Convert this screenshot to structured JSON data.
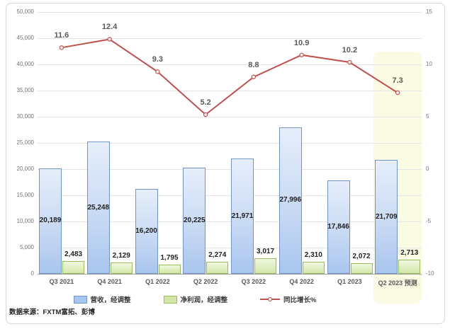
{
  "chart_data": {
    "type": "combo",
    "categories": [
      "Q3 2021",
      "Q4 2021",
      "Q1 2022",
      "Q2 2022",
      "Q3 2022",
      "Q4 2022",
      "Q1 2023",
      "Q2 2023 预测"
    ],
    "series": [
      {
        "name": "营收，经调整",
        "type": "bar",
        "axis": "left",
        "values": [
          20189,
          25248,
          16200,
          20225,
          21971,
          27996,
          17846,
          21709
        ]
      },
      {
        "name": "净利润，经调整",
        "type": "bar",
        "axis": "left",
        "values": [
          2483,
          2129,
          1795,
          2274,
          3017,
          2310,
          2072,
          2713
        ]
      },
      {
        "name": "同比增长%",
        "type": "line",
        "axis": "right",
        "values": [
          11.6,
          12.4,
          9.3,
          5.2,
          8.8,
          10.9,
          10.2,
          7.3
        ]
      }
    ],
    "left_axis": {
      "min": 0,
      "max": 50000,
      "step": 5000
    },
    "right_axis": {
      "min": -10,
      "max": 15,
      "step": 5
    },
    "grid": true,
    "legend_position": "bottom",
    "forecast_highlight_category": "Q2 2023 预测"
  },
  "colors": {
    "revenue_fill_top": "#e6eefb",
    "revenue_fill_mid": "#c9daf4",
    "revenue_fill_bottom": "#a9c6ee",
    "revenue_border": "#6e96cb",
    "profit_fill_top": "#f0f8e1",
    "profit_fill_bottom": "#d2e7a8",
    "profit_border": "#9bbb59",
    "line_color": "#c0504d",
    "forecast_band": "#fbfae3"
  },
  "legend": {
    "revenue_label": "营收，经调整",
    "profit_label": "净利润，经调整",
    "yoy_label": "同比增长%"
  },
  "footer": {
    "source": "数据来源：FXTM富拓、彭博"
  }
}
